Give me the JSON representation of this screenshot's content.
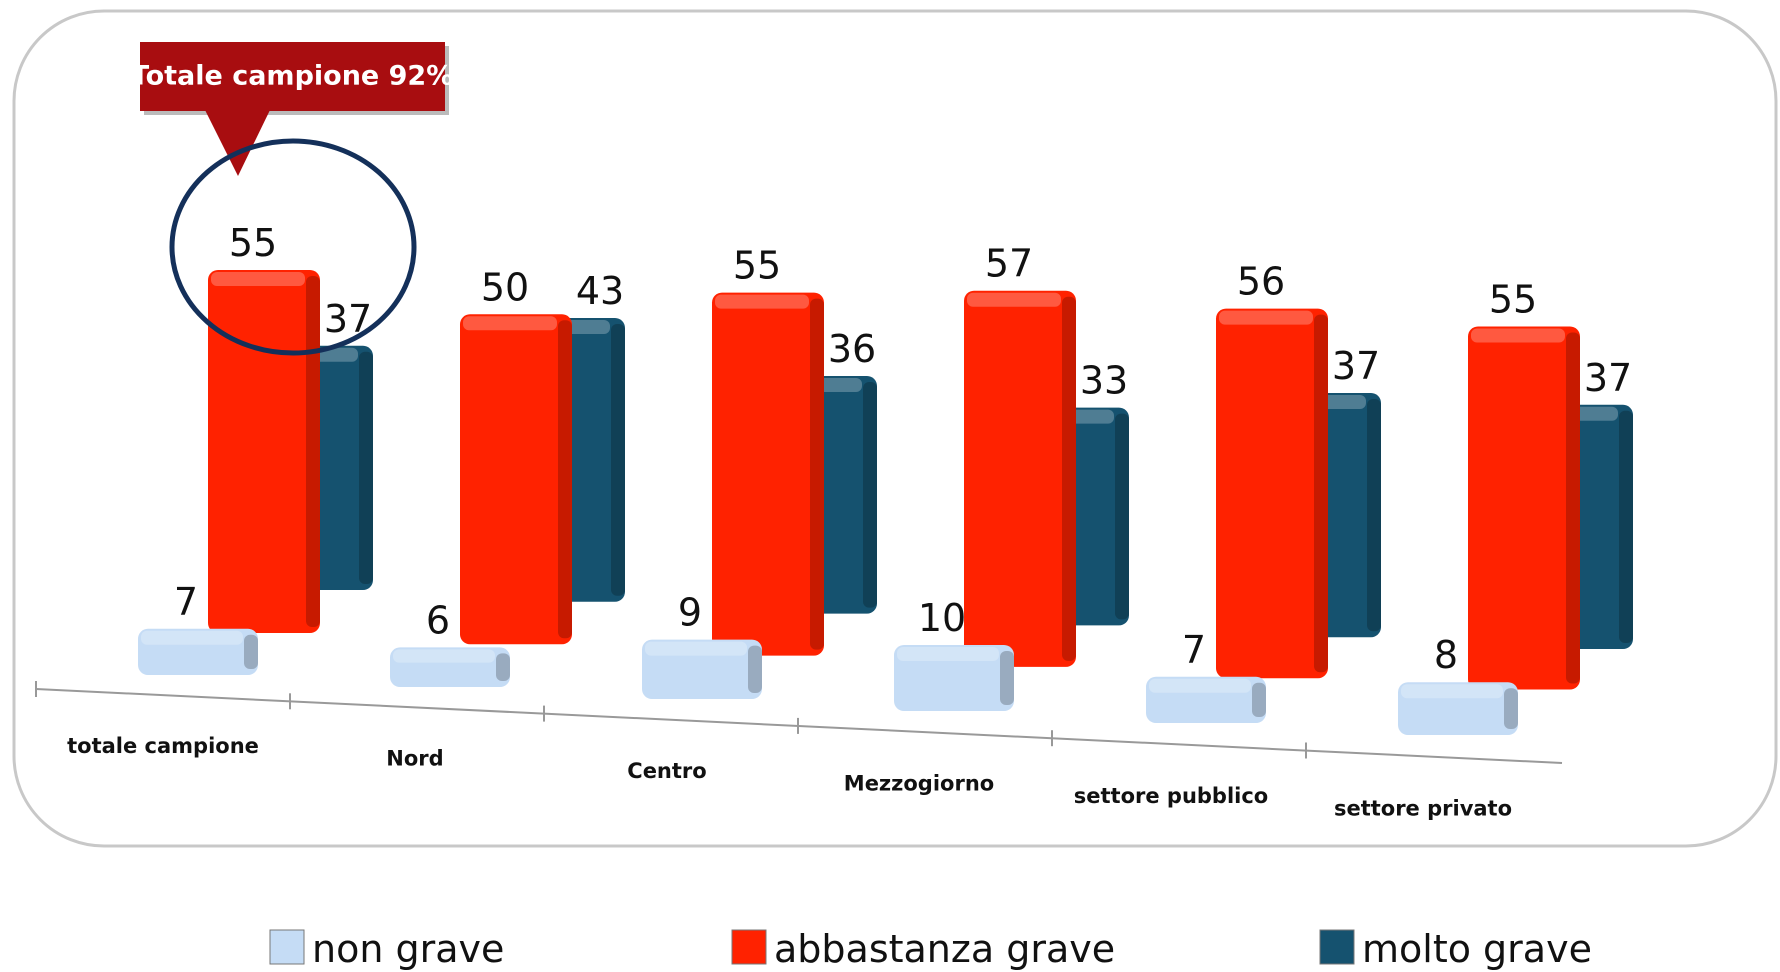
{
  "chart_data": {
    "type": "bar",
    "annotation": "Totale campione 92%",
    "categories": [
      "totale campione",
      "Nord",
      "Centro",
      "Mezzogiorno",
      "settore pubblico",
      "settore privato"
    ],
    "series": [
      {
        "name": "non grave",
        "color": "#c5dcf5",
        "values": [
          7,
          6,
          9,
          10,
          7,
          8
        ]
      },
      {
        "name": "abbastanza grave",
        "color": "#ff2200",
        "values": [
          55,
          50,
          55,
          57,
          56,
          55
        ]
      },
      {
        "name": "molto grave",
        "color": "#15526f",
        "values": [
          37,
          43,
          36,
          33,
          37,
          37
        ]
      }
    ],
    "legend": "bottom"
  }
}
